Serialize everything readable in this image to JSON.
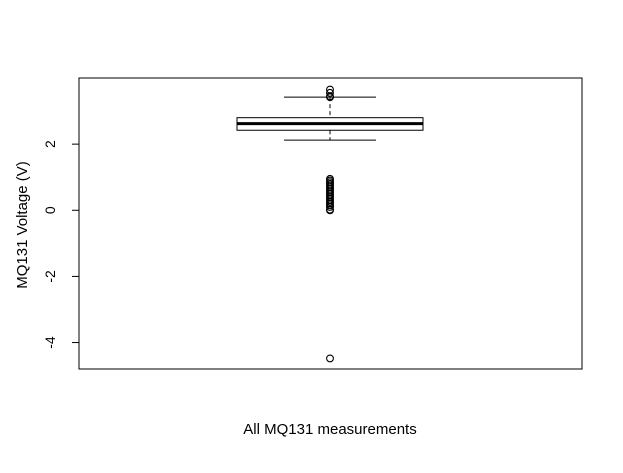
{
  "chart_data": {
    "type": "box",
    "title": "",
    "xlabel": "All MQ131 measurements",
    "ylabel": "MQ131 Voltage (V)",
    "ylim": [
      -4.8,
      4.0
    ],
    "yticks": [
      -4,
      -2,
      0,
      2
    ],
    "ytick_labels": [
      "-4",
      "-2",
      "0",
      "2"
    ],
    "grid": false,
    "box": {
      "whisker_low": 2.12,
      "q1": 2.42,
      "median": 2.62,
      "q3": 2.8,
      "whisker_high": 3.42
    },
    "outliers": [
      3.65,
      3.55,
      3.45,
      3.42,
      0.95,
      0.9,
      0.85,
      0.8,
      0.75,
      0.7,
      0.65,
      0.6,
      0.55,
      0.5,
      0.45,
      0.4,
      0.35,
      0.3,
      0.25,
      0.2,
      0.15,
      0.1,
      0.02,
      0.0,
      -4.48
    ]
  }
}
